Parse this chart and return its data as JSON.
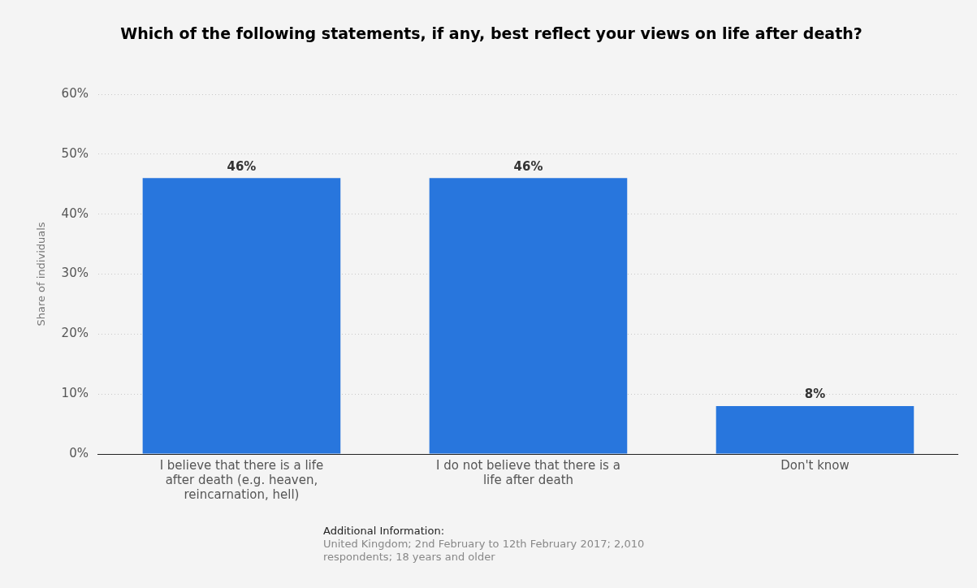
{
  "chart_data": {
    "type": "bar",
    "title": "Which of the following statements, if any, best reflect your views on life after death?",
    "categories": [
      "I believe that there is a life after death (e.g. heaven, reincarnation, hell)",
      "I do not believe that there is a life after death",
      "Don't know"
    ],
    "values": [
      46,
      46,
      8
    ],
    "color": "#2876dd",
    "value_labels": [
      "46%",
      "46%",
      "8%"
    ],
    "ylabel": "Share of individuals",
    "ylim": [
      0,
      60
    ],
    "yticks": [
      {
        "value": 0,
        "label": "0%"
      },
      {
        "value": 10,
        "label": "10%"
      },
      {
        "value": 20,
        "label": "20%"
      },
      {
        "value": 30,
        "label": "30%"
      },
      {
        "value": 40,
        "label": "40%"
      },
      {
        "value": 50,
        "label": "50%"
      },
      {
        "value": 60,
        "label": "60%"
      }
    ],
    "grid": "y",
    "legend": false,
    "annotations": [
      "Additional Information:",
      "United Kingdom; 2nd February to 12th February 2017; 2,010 respondents; 18 years and older"
    ]
  }
}
